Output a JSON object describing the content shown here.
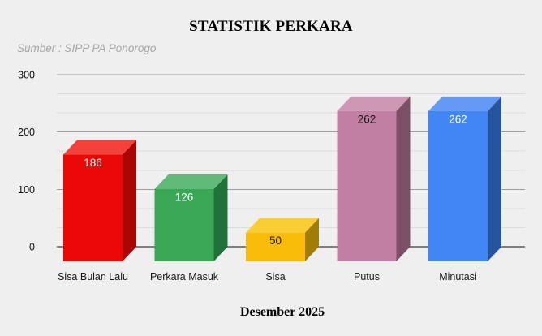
{
  "window": {
    "background": "#efefef"
  },
  "header": {
    "title": "STATISTIK PERKARA",
    "subtitle": "Sumber : SIPP PA Ponorogo",
    "title_color": "#000000",
    "subtitle_color": "#a6a6a6"
  },
  "chart_data": {
    "type": "bar",
    "style": "3d-column",
    "title": "STATISTIK PERKARA",
    "subtitle": "Sumber : SIPP PA Ponorogo",
    "xlabel": "Desember 2025",
    "ylabel": "",
    "ylim": [
      0,
      300
    ],
    "yticks": [
      0,
      100,
      200,
      300
    ],
    "minor_gridlines_between_majors": 2,
    "grid": true,
    "legend": "none",
    "categories": [
      "Sisa Bulan Lalu",
      "Perkara Masuk",
      "Sisa",
      "Putus",
      "Minutasi"
    ],
    "values": [
      186,
      126,
      50,
      262,
      262
    ],
    "points": [
      {
        "label": "Sisa Bulan Lalu",
        "value": 186,
        "color_front": "#ec0707",
        "color_top": "#f4423b",
        "color_side": "#aa0404",
        "value_label_color": "#ffffff"
      },
      {
        "label": "Perkara Masuk",
        "value": 126,
        "color_front": "#3aa757",
        "color_top": "#60bb79",
        "color_side": "#20713a",
        "value_label_color": "#ffffff"
      },
      {
        "label": "Sisa",
        "value": 50,
        "color_front": "#fbbb09",
        "color_top": "#f9cd33",
        "color_side": "#a27d04",
        "value_label_color": "#1a1a1a"
      },
      {
        "label": "Putus",
        "value": 262,
        "color_front": "#c180a3",
        "color_top": "#cd97b3",
        "color_side": "#7d4f67",
        "value_label_color": "#1a1a1a"
      },
      {
        "label": "Minutasi",
        "value": 262,
        "color_front": "#4285f4",
        "color_top": "#639af6",
        "color_side": "#28539e",
        "value_label_color": "#ffffff"
      }
    ],
    "colors": {
      "axis_line": "#111111",
      "major_gridline": "#9e9e9e",
      "minor_gridline": "#dcdcdc",
      "tick_label": "#111111",
      "category_label": "#1a1a1a"
    }
  }
}
